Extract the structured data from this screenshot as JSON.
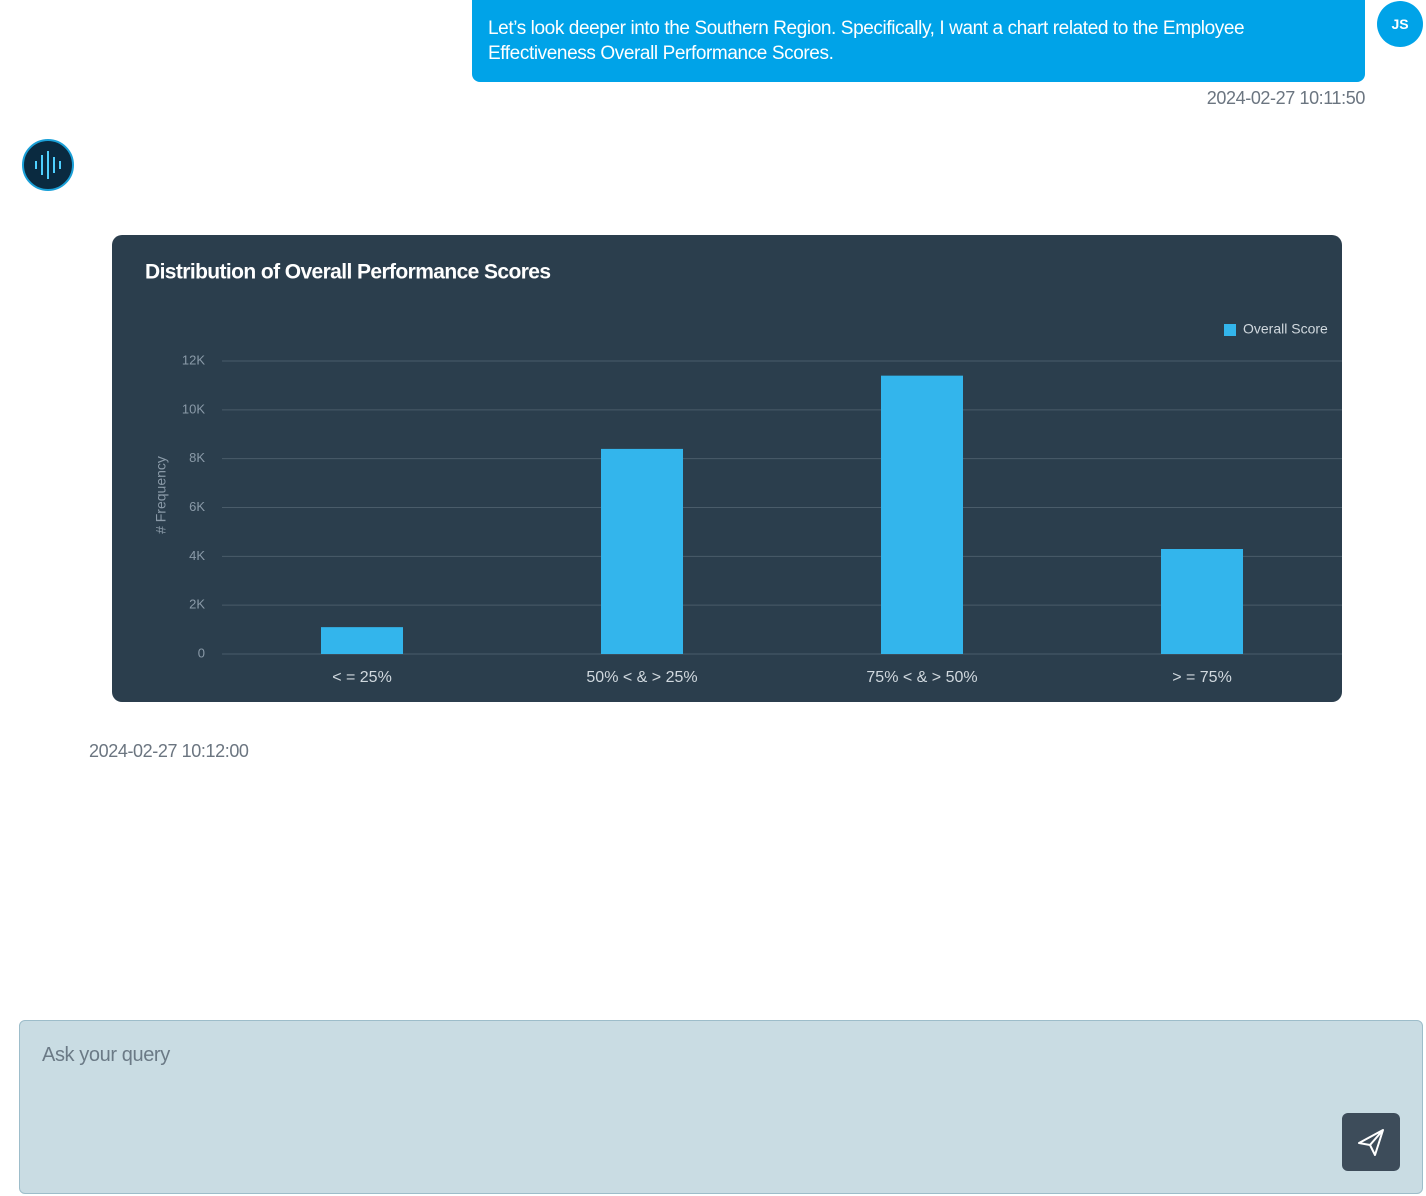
{
  "user_message": {
    "avatar": "JS",
    "text": "Let’s look deeper into the Southern Region. Specifically, I want a chart related to the Employee Effectiveness Overall Performance Scores.",
    "timestamp": "2024-02-27 10:11:50"
  },
  "bot_message": {
    "timestamp": "2024-02-27 10:12:00"
  },
  "chart_data": {
    "type": "bar",
    "title": "Distribution of Overall Performance Scores",
    "y_label": "# Frequency",
    "categories": [
      "< = 25%",
      "50% < & > 25%",
      "75% < & > 50%",
      "> = 75%"
    ],
    "series": [
      {
        "name": "Overall Score",
        "color": "#33b5ec",
        "values": [
          1100,
          8400,
          11400,
          4300
        ]
      }
    ],
    "ylim": [
      0,
      12000
    ],
    "yticks": [
      0,
      {
        "value": 2000,
        "label": "2K"
      },
      {
        "value": 4000,
        "label": "4K"
      },
      {
        "value": 6000,
        "label": "6K"
      },
      {
        "value": 8000,
        "label": "8K"
      },
      {
        "value": 10000,
        "label": "10K"
      },
      {
        "value": 12000,
        "label": "12K"
      }
    ],
    "grid": true,
    "legend": "top-right"
  },
  "input": {
    "placeholder": "Ask your query"
  }
}
